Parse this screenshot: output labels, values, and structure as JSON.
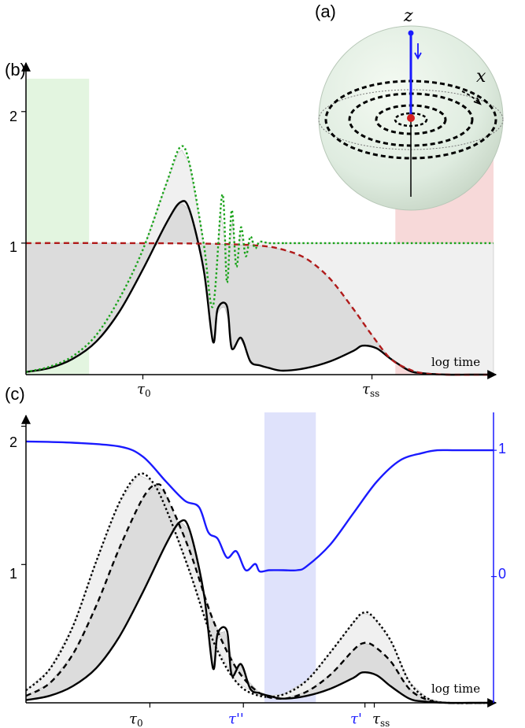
{
  "chart_data": [
    {
      "panel": "(b)",
      "type": "line",
      "xlabel": "log time",
      "ylabel": "",
      "yticks": [
        "1",
        "2"
      ],
      "ylim": [
        0,
        2.25
      ],
      "xlim": [
        0,
        1
      ],
      "xtick_labels": [
        "τ0",
        "τss"
      ],
      "xtick_positions": [
        0.25,
        0.74
      ],
      "shaded_regions": [
        {
          "x0": 0.0,
          "x1": 0.135,
          "color": "#d9f2d5"
        },
        {
          "x0": 0.79,
          "x1": 1.0,
          "color": "#f4cccc"
        }
      ],
      "series": [
        {
          "style": "solid",
          "color": "#000000",
          "x": [
            0.0,
            0.05,
            0.1,
            0.15,
            0.2,
            0.25,
            0.3,
            0.33,
            0.35,
            0.38,
            0.4,
            0.41,
            0.43,
            0.44,
            0.46,
            0.48,
            0.5,
            0.52,
            0.55,
            0.6,
            0.65,
            0.7,
            0.72,
            0.75,
            0.78,
            0.82,
            0.85,
            0.9,
            0.95,
            1.0
          ],
          "y": [
            0.02,
            0.05,
            0.12,
            0.25,
            0.48,
            0.8,
            1.15,
            1.31,
            1.25,
            0.8,
            0.25,
            0.5,
            0.52,
            0.2,
            0.28,
            0.1,
            0.07,
            0.05,
            0.03,
            0.05,
            0.1,
            0.18,
            0.22,
            0.2,
            0.12,
            0.03,
            0.01,
            0.0,
            0.0,
            0.0
          ]
        },
        {
          "style": "dashed",
          "color": "#b01a1a",
          "x": [
            0.0,
            0.2,
            0.4,
            0.5,
            0.55,
            0.6,
            0.65,
            0.7,
            0.74,
            0.78,
            0.82,
            0.85,
            0.9,
            1.0
          ],
          "y": [
            1.0,
            1.0,
            0.995,
            0.98,
            0.95,
            0.88,
            0.73,
            0.5,
            0.3,
            0.12,
            0.04,
            0.01,
            0.0,
            0.0
          ]
        },
        {
          "style": "dotted",
          "color": "#1aa31a",
          "x": [
            0.0,
            0.05,
            0.1,
            0.15,
            0.2,
            0.25,
            0.3,
            0.33,
            0.35,
            0.38,
            0.4,
            0.42,
            0.43,
            0.44,
            0.45,
            0.46,
            0.47,
            0.48,
            0.49,
            0.5,
            0.52,
            0.55,
            0.6,
            1.0
          ],
          "y": [
            0.02,
            0.06,
            0.14,
            0.3,
            0.58,
            0.95,
            1.45,
            1.73,
            1.6,
            1.0,
            0.52,
            1.37,
            0.7,
            1.25,
            0.82,
            1.12,
            0.9,
            1.05,
            0.96,
            1.01,
            1.0,
            1.0,
            1.0,
            1.0
          ]
        }
      ],
      "gray_region": "area between black and dashed curves (light gray)"
    },
    {
      "panel": "(c)",
      "type": "line",
      "xlabel": "log time",
      "yticks_left": [
        "1",
        "2"
      ],
      "yticks_right": [
        "0",
        "1"
      ],
      "ylim_left": [
        0,
        2.1
      ],
      "ylim_right": [
        -1.0,
        1.3
      ],
      "xlim": [
        0,
        1
      ],
      "xtick_labels": [
        "τ0",
        "τ''",
        "τ'",
        "τss"
      ],
      "xtick_positions": [
        0.265,
        0.465,
        0.725,
        0.745
      ],
      "shaded_regions": [
        {
          "x0": 0.51,
          "x1": 0.62,
          "color": "#d4d8fa"
        }
      ],
      "series": [
        {
          "name": "",
          "axis": "left",
          "style": "solid",
          "color": "#000000",
          "x": [
            0.0,
            0.05,
            0.1,
            0.15,
            0.2,
            0.25,
            0.3,
            0.33,
            0.35,
            0.38,
            0.4,
            0.41,
            0.43,
            0.44,
            0.46,
            0.48,
            0.5,
            0.52,
            0.55,
            0.6,
            0.65,
            0.7,
            0.72,
            0.75,
            0.78,
            0.82,
            0.85,
            0.9,
            0.95,
            1.0
          ],
          "y": [
            0.02,
            0.05,
            0.12,
            0.25,
            0.48,
            0.8,
            1.15,
            1.31,
            1.25,
            0.8,
            0.25,
            0.5,
            0.52,
            0.2,
            0.28,
            0.1,
            0.07,
            0.05,
            0.03,
            0.05,
            0.1,
            0.18,
            0.22,
            0.2,
            0.12,
            0.03,
            0.01,
            0.0,
            0.0,
            0.0
          ]
        },
        {
          "name": "",
          "axis": "left",
          "style": "dashed",
          "color": "#000000",
          "x": [
            0.0,
            0.05,
            0.1,
            0.15,
            0.2,
            0.25,
            0.28,
            0.3,
            0.35,
            0.4,
            0.45,
            0.5,
            0.55,
            0.6,
            0.65,
            0.7,
            0.72,
            0.74,
            0.78,
            0.82,
            0.86,
            0.9,
            1.0
          ],
          "y": [
            0.05,
            0.14,
            0.35,
            0.7,
            1.12,
            1.48,
            1.58,
            1.5,
            1.1,
            0.6,
            0.25,
            0.07,
            0.03,
            0.08,
            0.2,
            0.38,
            0.43,
            0.42,
            0.3,
            0.1,
            0.02,
            0.0,
            0.0
          ]
        },
        {
          "name": "",
          "axis": "left",
          "style": "dotted",
          "color": "#000000",
          "x": [
            0.0,
            0.05,
            0.1,
            0.15,
            0.2,
            0.24,
            0.27,
            0.3,
            0.35,
            0.4,
            0.45,
            0.5,
            0.55,
            0.6,
            0.65,
            0.7,
            0.72,
            0.74,
            0.78,
            0.82,
            0.86,
            0.9,
            1.0
          ],
          "y": [
            0.09,
            0.24,
            0.55,
            1.02,
            1.45,
            1.65,
            1.6,
            1.4,
            0.95,
            0.45,
            0.15,
            0.05,
            0.06,
            0.16,
            0.36,
            0.58,
            0.65,
            0.63,
            0.45,
            0.15,
            0.03,
            0.0,
            0.0
          ]
        },
        {
          "name": "",
          "axis": "right",
          "style": "solid",
          "color": "#1a1aff",
          "x": [
            0.0,
            0.1,
            0.2,
            0.25,
            0.3,
            0.34,
            0.37,
            0.39,
            0.41,
            0.43,
            0.45,
            0.47,
            0.49,
            0.5,
            0.52,
            0.55,
            0.58,
            0.6,
            0.65,
            0.7,
            0.75,
            0.8,
            0.85,
            0.88,
            0.92,
            1.0
          ],
          "y": [
            1.07,
            1.06,
            1.03,
            0.95,
            0.75,
            0.6,
            0.55,
            0.35,
            0.3,
            0.15,
            0.2,
            0.05,
            0.1,
            0.04,
            0.05,
            0.05,
            0.05,
            0.08,
            0.25,
            0.5,
            0.75,
            0.92,
            0.98,
            1.0,
            1.0,
            1.0
          ]
        }
      ],
      "gray_regions": "light-to-dark gray fills between the dotted, dashed and solid curves"
    }
  ],
  "labels": {
    "panel_a": "(a)",
    "panel_b": "(b)",
    "panel_c": "(c)",
    "z_axis": "z",
    "x_axis": "x",
    "xlabel_b": "log time",
    "xlabel_c": "log time",
    "ytick_b_1": "1",
    "ytick_b_2": "2",
    "ytick_c_1": "1",
    "ytick_c_2": "2",
    "ytick_c_right_0": "0",
    "ytick_c_right_1": "1",
    "tau0_b": "τ",
    "tau0_b_sub": "0",
    "tauss_b": "τ",
    "tauss_b_sub": "ss",
    "tau0_c": "τ",
    "tau0_c_sub": "0",
    "taupp_c": "τ''",
    "taup_c": "τ'",
    "tauss_c": "τ",
    "tauss_c_sub": "ss"
  },
  "colors": {
    "black": "#000000",
    "red_dashed": "#b01a1a",
    "green_dotted": "#1aa31a",
    "blue": "#1a1aff",
    "green_region": "#d9f2d5",
    "red_region": "#f4cccc",
    "blue_region": "#d4d8fa",
    "light_gray": "#e4e4e4",
    "mid_gray": "#c8c8c8",
    "dark_gray": "#9a9a9a",
    "sphere": "#e3efe0"
  }
}
